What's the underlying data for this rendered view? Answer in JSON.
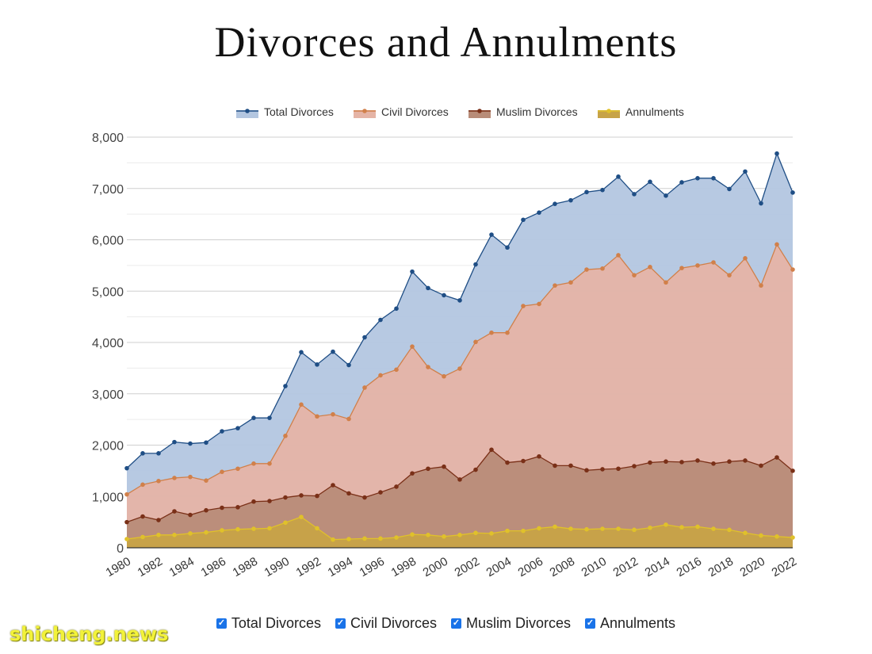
{
  "chart_data": {
    "type": "area",
    "title": "Divorces and Annulments",
    "xlabel": "",
    "ylabel": "",
    "ylim": [
      0,
      8000
    ],
    "yticks": [
      "0",
      "1,000",
      "2,000",
      "3,000",
      "4,000",
      "5,000",
      "6,000",
      "7,000",
      "8,000"
    ],
    "x": [
      1980,
      1981,
      1982,
      1983,
      1984,
      1985,
      1986,
      1987,
      1988,
      1989,
      1990,
      1991,
      1992,
      1993,
      1994,
      1995,
      1996,
      1997,
      1998,
      1999,
      2000,
      2001,
      2002,
      2003,
      2004,
      2005,
      2006,
      2007,
      2008,
      2009,
      2010,
      2011,
      2012,
      2013,
      2014,
      2015,
      2016,
      2017,
      2018,
      2019,
      2020,
      2021,
      2022
    ],
    "xtick_labels": [
      "1980",
      "1982",
      "1984",
      "1986",
      "1988",
      "1990",
      "1992",
      "1994",
      "1996",
      "1998",
      "2000",
      "2002",
      "2004",
      "2006",
      "2008",
      "2010",
      "2012",
      "2014",
      "2016",
      "2018",
      "2020",
      "2022"
    ],
    "grid": true,
    "legend_position": "top",
    "series": [
      {
        "name": "Total Divorces",
        "color": "#1f4e85",
        "fill": "#b3c6e0",
        "values": [
          1550,
          1840,
          1840,
          2060,
          2030,
          2050,
          2270,
          2330,
          2530,
          2530,
          3150,
          3810,
          3570,
          3820,
          3560,
          4100,
          4440,
          4660,
          5380,
          5060,
          4920,
          4820,
          5520,
          6100,
          5850,
          6390,
          6530,
          6700,
          6770,
          6930,
          6970,
          7230,
          6890,
          7130,
          6860,
          7120,
          7200,
          7200,
          6990,
          7330,
          6710,
          7680,
          6920
        ]
      },
      {
        "name": "Civil Divorces",
        "color": "#d1804a",
        "fill": "#e5b4a6",
        "values": [
          1040,
          1230,
          1300,
          1360,
          1380,
          1310,
          1480,
          1540,
          1640,
          1640,
          2180,
          2790,
          2560,
          2600,
          2510,
          3120,
          3360,
          3470,
          3920,
          3520,
          3340,
          3490,
          4010,
          4190,
          4190,
          4710,
          4750,
          5110,
          5170,
          5420,
          5440,
          5700,
          5310,
          5470,
          5170,
          5450,
          5500,
          5560,
          5310,
          5640,
          5110,
          5910,
          5420
        ]
      },
      {
        "name": "Muslim Divorces",
        "color": "#7a3018",
        "fill": "#b88c78",
        "values": [
          500,
          610,
          540,
          710,
          640,
          730,
          780,
          790,
          900,
          910,
          980,
          1020,
          1010,
          1220,
          1060,
          980,
          1080,
          1190,
          1450,
          1540,
          1580,
          1330,
          1520,
          1910,
          1660,
          1690,
          1780,
          1600,
          1600,
          1510,
          1530,
          1540,
          1590,
          1660,
          1680,
          1670,
          1700,
          1640,
          1680,
          1700,
          1600,
          1760,
          1500
        ]
      },
      {
        "name": "Annulments",
        "color": "#e0c12a",
        "fill": "#c7a347",
        "values": [
          170,
          210,
          250,
          250,
          280,
          300,
          340,
          360,
          370,
          380,
          490,
          600,
          380,
          160,
          170,
          180,
          180,
          200,
          260,
          250,
          220,
          250,
          290,
          280,
          330,
          330,
          380,
          410,
          370,
          360,
          370,
          370,
          350,
          390,
          450,
          400,
          410,
          370,
          350,
          290,
          240,
          220,
          200
        ]
      }
    ],
    "toggles": [
      "Total Divorces",
      "Civil Divorces",
      "Muslim Divorces",
      "Annulments"
    ]
  },
  "watermark": "shicheng.news"
}
